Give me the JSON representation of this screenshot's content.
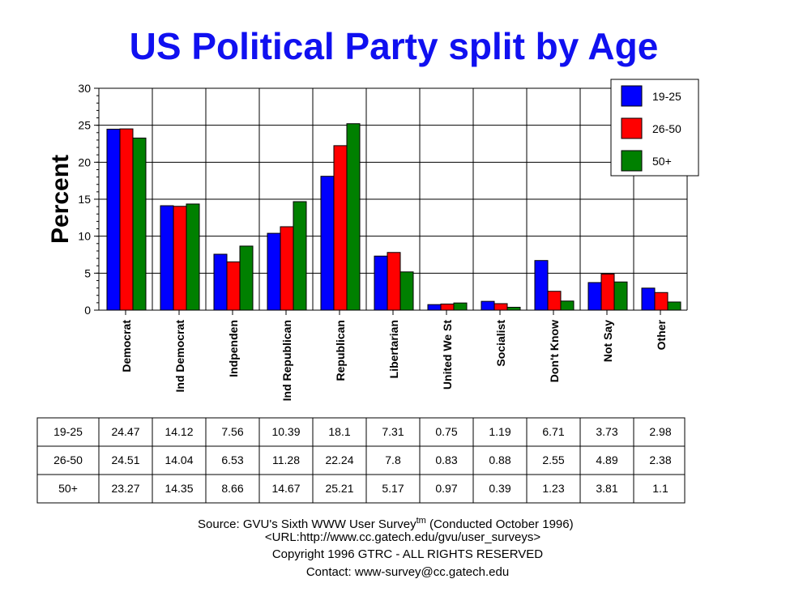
{
  "chart_data": {
    "type": "bar",
    "title": "US Political Party split by Age",
    "ylabel": "Percent",
    "xlabel": "",
    "ylim": [
      0,
      30
    ],
    "yticks": [
      0,
      5,
      10,
      15,
      20,
      25,
      30
    ],
    "grid": true,
    "legend_position": "top-right",
    "categories": [
      "Democrat",
      "Ind Democrat",
      "Indpenden",
      "Ind Republican",
      "Republican",
      "Libertarian",
      "United We St",
      "Socialist",
      "Don't Know",
      "Not Say",
      "Other"
    ],
    "series": [
      {
        "name": "19-25",
        "color": "#0000FF",
        "values": [
          24.47,
          14.12,
          7.56,
          10.39,
          18.1,
          7.31,
          0.75,
          1.19,
          6.71,
          3.73,
          2.98
        ]
      },
      {
        "name": "26-50",
        "color": "#FF0000",
        "values": [
          24.51,
          14.04,
          6.53,
          11.28,
          22.24,
          7.8,
          0.83,
          0.88,
          2.55,
          4.89,
          2.38
        ]
      },
      {
        "name": "50+",
        "color": "#008000",
        "values": [
          23.27,
          14.35,
          8.66,
          14.67,
          25.21,
          5.17,
          0.97,
          0.39,
          1.23,
          3.81,
          1.1
        ]
      }
    ],
    "table_values": [
      [
        "24.47",
        "14.12",
        "7.56",
        "10.39",
        "18.1",
        "7.31",
        "0.75",
        "1.19",
        "6.71",
        "3.73",
        "2.98"
      ],
      [
        "24.51",
        "14.04",
        "6.53",
        "11.28",
        "22.24",
        "7.8",
        "0.83",
        "0.88",
        "2.55",
        "4.89",
        "2.38"
      ],
      [
        "23.27",
        "14.35",
        "8.66",
        "14.67",
        "25.21",
        "5.17",
        "0.97",
        "0.39",
        "1.23",
        "3.81",
        "1.1"
      ]
    ]
  },
  "footer": {
    "source": "Source: GVU's Sixth WWW User Survey",
    "tm": "tm",
    "conducted": " (Conducted October 1996)",
    "url": "<URL:http://www.cc.gatech.edu/gvu/user_surveys>",
    "copyright": "Copyright 1996 GTRC -  ALL RIGHTS RESERVED",
    "contact": "Contact: www-survey@cc.gatech.edu"
  }
}
